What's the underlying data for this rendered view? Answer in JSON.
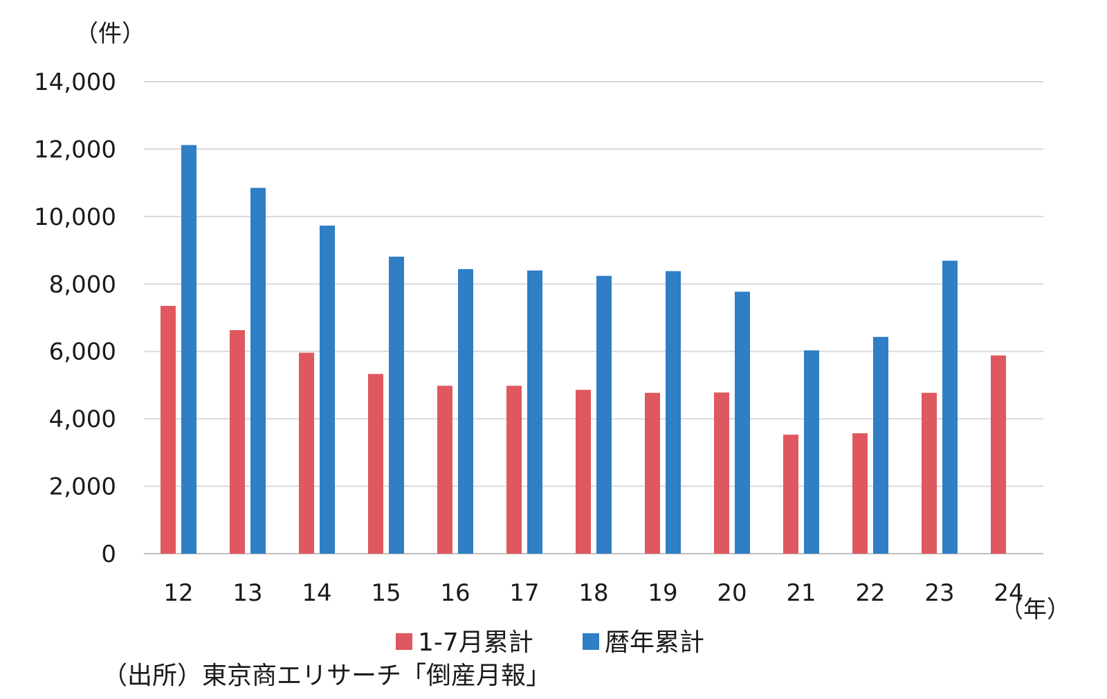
{
  "chart_data": {
    "type": "bar",
    "ylabel": "（件）",
    "xlabel": "（年）",
    "ylim": [
      0,
      14000
    ],
    "yticks": [
      0,
      2000,
      4000,
      6000,
      8000,
      10000,
      12000,
      14000
    ],
    "ytick_labels": [
      "0",
      "2,000",
      "4,000",
      "6,000",
      "8,000",
      "10,000",
      "12,000",
      "14,000"
    ],
    "categories": [
      "12",
      "13",
      "14",
      "15",
      "16",
      "17",
      "18",
      "19",
      "20",
      "21",
      "22",
      "23",
      "24"
    ],
    "grid": true,
    "legend_position": "bottom",
    "series": [
      {
        "name": "1-7月累計",
        "color": "#e0585f",
        "values": [
          7350,
          6630,
          5960,
          5330,
          4980,
          4980,
          4860,
          4770,
          4780,
          3530,
          3570,
          4770,
          5880
        ]
      },
      {
        "name": "暦年累計",
        "color": "#2f7ec6",
        "values": [
          12120,
          10850,
          9730,
          8810,
          8440,
          8400,
          8240,
          8380,
          7770,
          6030,
          6430,
          8690,
          null
        ]
      }
    ]
  },
  "source": "（出所）東京商エリサーチ「倒産月報」"
}
